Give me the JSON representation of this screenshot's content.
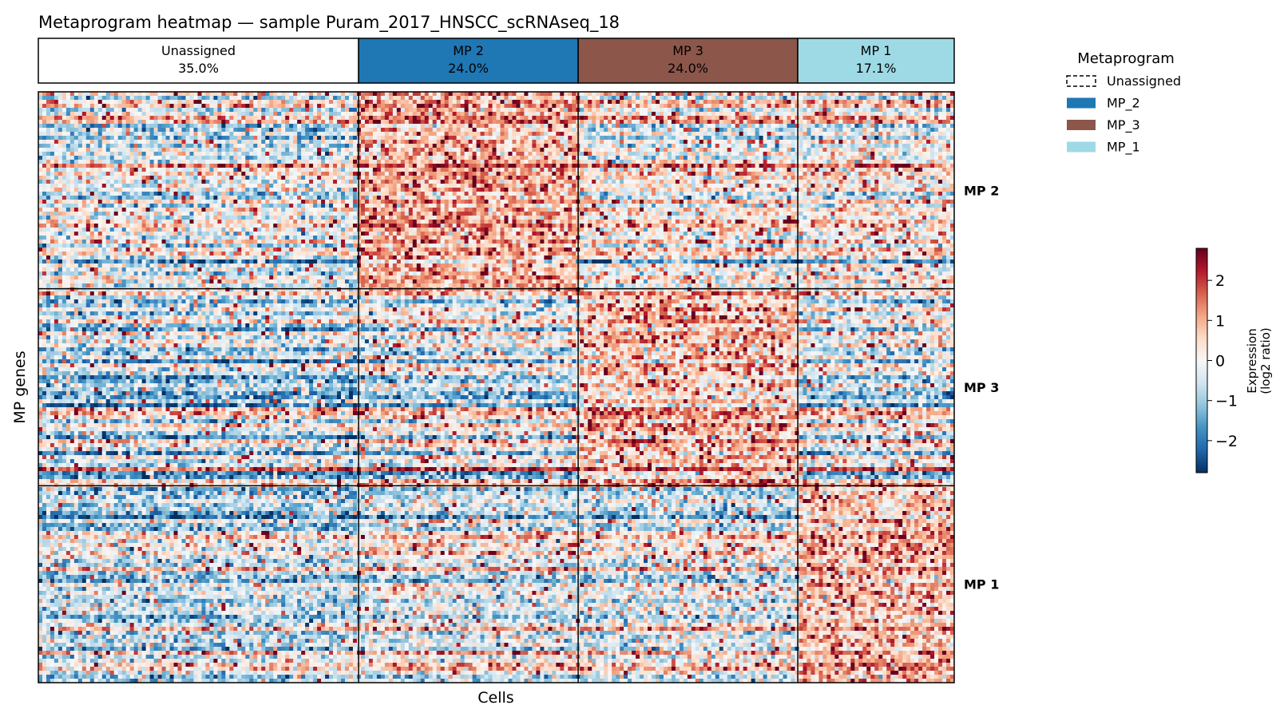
{
  "chart_data": {
    "type": "heatmap",
    "title": "Metaprogram heatmap — sample Puram_2017_HNSCC_scRNAseq_18",
    "xlabel": "Cells",
    "ylabel": "MP genes",
    "cell_groups": [
      {
        "label": "Unassigned",
        "percent": "35.0%",
        "fraction": 0.35,
        "color": "#ffffff"
      },
      {
        "label": "MP 2",
        "percent": "24.0%",
        "fraction": 0.24,
        "color": "#1f77b4"
      },
      {
        "label": "MP 3",
        "percent": "24.0%",
        "fraction": 0.24,
        "color": "#8c564b"
      },
      {
        "label": "MP 1",
        "percent": "17.1%",
        "fraction": 0.171,
        "color": "#9edae5"
      }
    ],
    "gene_blocks": [
      {
        "label": "MP 2",
        "high_in": "MP 2"
      },
      {
        "label": "MP 3",
        "high_in": "MP 3"
      },
      {
        "label": "MP 1",
        "high_in": "MP 1"
      }
    ],
    "legend": {
      "title": "Metaprogram",
      "placement": "top-right",
      "entries": [
        {
          "label": "Unassigned",
          "color": "#ffffff",
          "style": "dashed"
        },
        {
          "label": "MP_2",
          "color": "#1f77b4",
          "style": "solid"
        },
        {
          "label": "MP_3",
          "color": "#8c564b",
          "style": "solid"
        },
        {
          "label": "MP_1",
          "color": "#9edae5",
          "style": "solid"
        }
      ]
    },
    "colorbar": {
      "label_line1": "Expression",
      "label_line2": "(log2 ratio)",
      "range": [
        -2.8,
        2.8
      ],
      "ticks": [
        {
          "value": 2,
          "label": "2"
        },
        {
          "value": 1,
          "label": "1"
        },
        {
          "value": 0,
          "label": "0"
        },
        {
          "value": -1,
          "label": "−1"
        },
        {
          "value": -2,
          "label": "−2"
        }
      ],
      "colormap": "RdBu_r"
    }
  }
}
